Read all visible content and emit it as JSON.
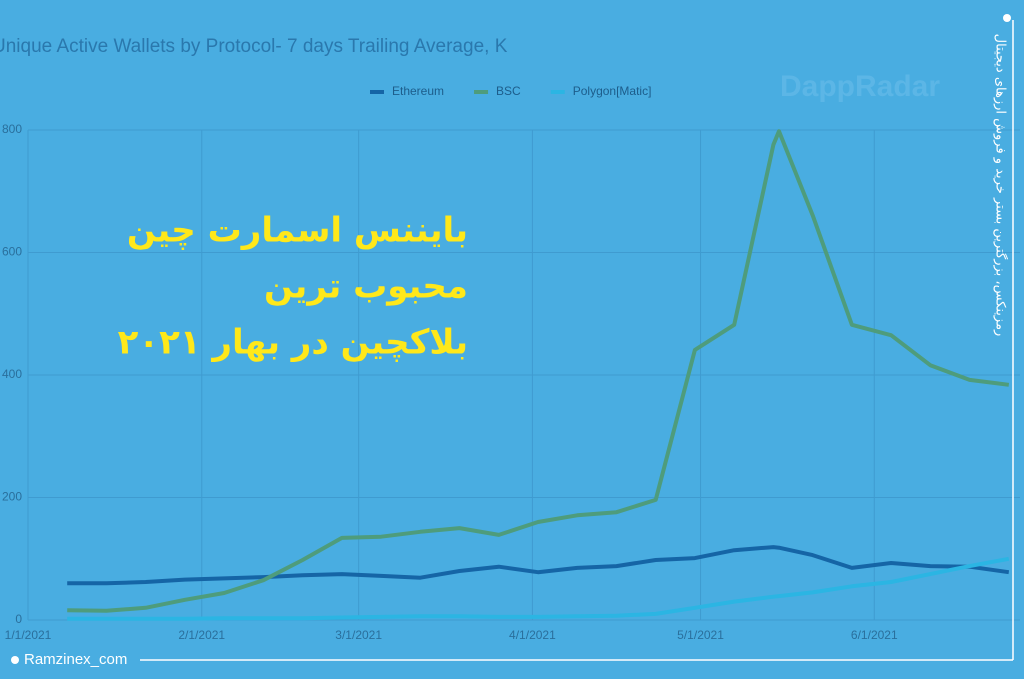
{
  "chart_data": {
    "type": "line",
    "title": "Unique Active Wallets by Protocol- 7 days Trailing Average, K",
    "x": [
      "1/8/2021",
      "1/15/2021",
      "1/22/2021",
      "1/29/2021",
      "2/5/2021",
      "2/12/2021",
      "2/19/2021",
      "2/26/2021",
      "3/5/2021",
      "3/12/2021",
      "3/19/2021",
      "3/26/2021",
      "4/2/2021",
      "4/9/2021",
      "4/16/2021",
      "4/23/2021",
      "4/30/2021",
      "5/7/2021",
      "5/14/2021",
      "5/15/2021",
      "5/21/2021",
      "5/28/2021",
      "6/4/2021",
      "6/11/2021",
      "6/18/2021",
      "6/25/2021"
    ],
    "series": [
      {
        "name": "Ethereum",
        "color": "#1565a6",
        "values": [
          60,
          60,
          62,
          66,
          68,
          70,
          73,
          75,
          72,
          69,
          80,
          87,
          78,
          85,
          88,
          98,
          101,
          114,
          119,
          118,
          106,
          85,
          93,
          88,
          87,
          78
        ]
      },
      {
        "name": "BSC",
        "color": "#4e9c7c",
        "values": [
          16,
          15,
          20,
          33,
          44,
          65,
          98,
          134,
          136,
          144,
          150,
          139,
          160,
          171,
          176,
          196,
          441,
          482,
          776,
          798,
          661,
          482,
          465,
          416,
          392,
          384
        ]
      },
      {
        "name": "Polygon[Matic]",
        "color": "#2bb5e3",
        "values": [
          2,
          2,
          2,
          2,
          3,
          3,
          3,
          4,
          5,
          6,
          6,
          5,
          5,
          6,
          7,
          10,
          20,
          30,
          38,
          39,
          45,
          55,
          62,
          75,
          88,
          100
        ]
      }
    ],
    "xlim": [
      "1/1/2021",
      "6/27/2021"
    ],
    "xticks": [
      "1/1/2021",
      "2/1/2021",
      "3/1/2021",
      "4/1/2021",
      "5/1/2021",
      "6/1/2021"
    ],
    "ylim": [
      0,
      800
    ],
    "yticks": [
      0,
      200,
      400,
      600,
      800
    ],
    "grid": true,
    "legend": "top"
  },
  "watermark": "DappRadar",
  "overlay": {
    "headline": [
      "بایننس اسمارت چین",
      "محبوب ترین",
      "بلاکچین در بهار ۲۰۲۱"
    ],
    "side_text": "رمزینکس، بزرگترین بستر خرید و فروش ارزهای دیجیتال",
    "footer": "Ramzinex_com"
  }
}
